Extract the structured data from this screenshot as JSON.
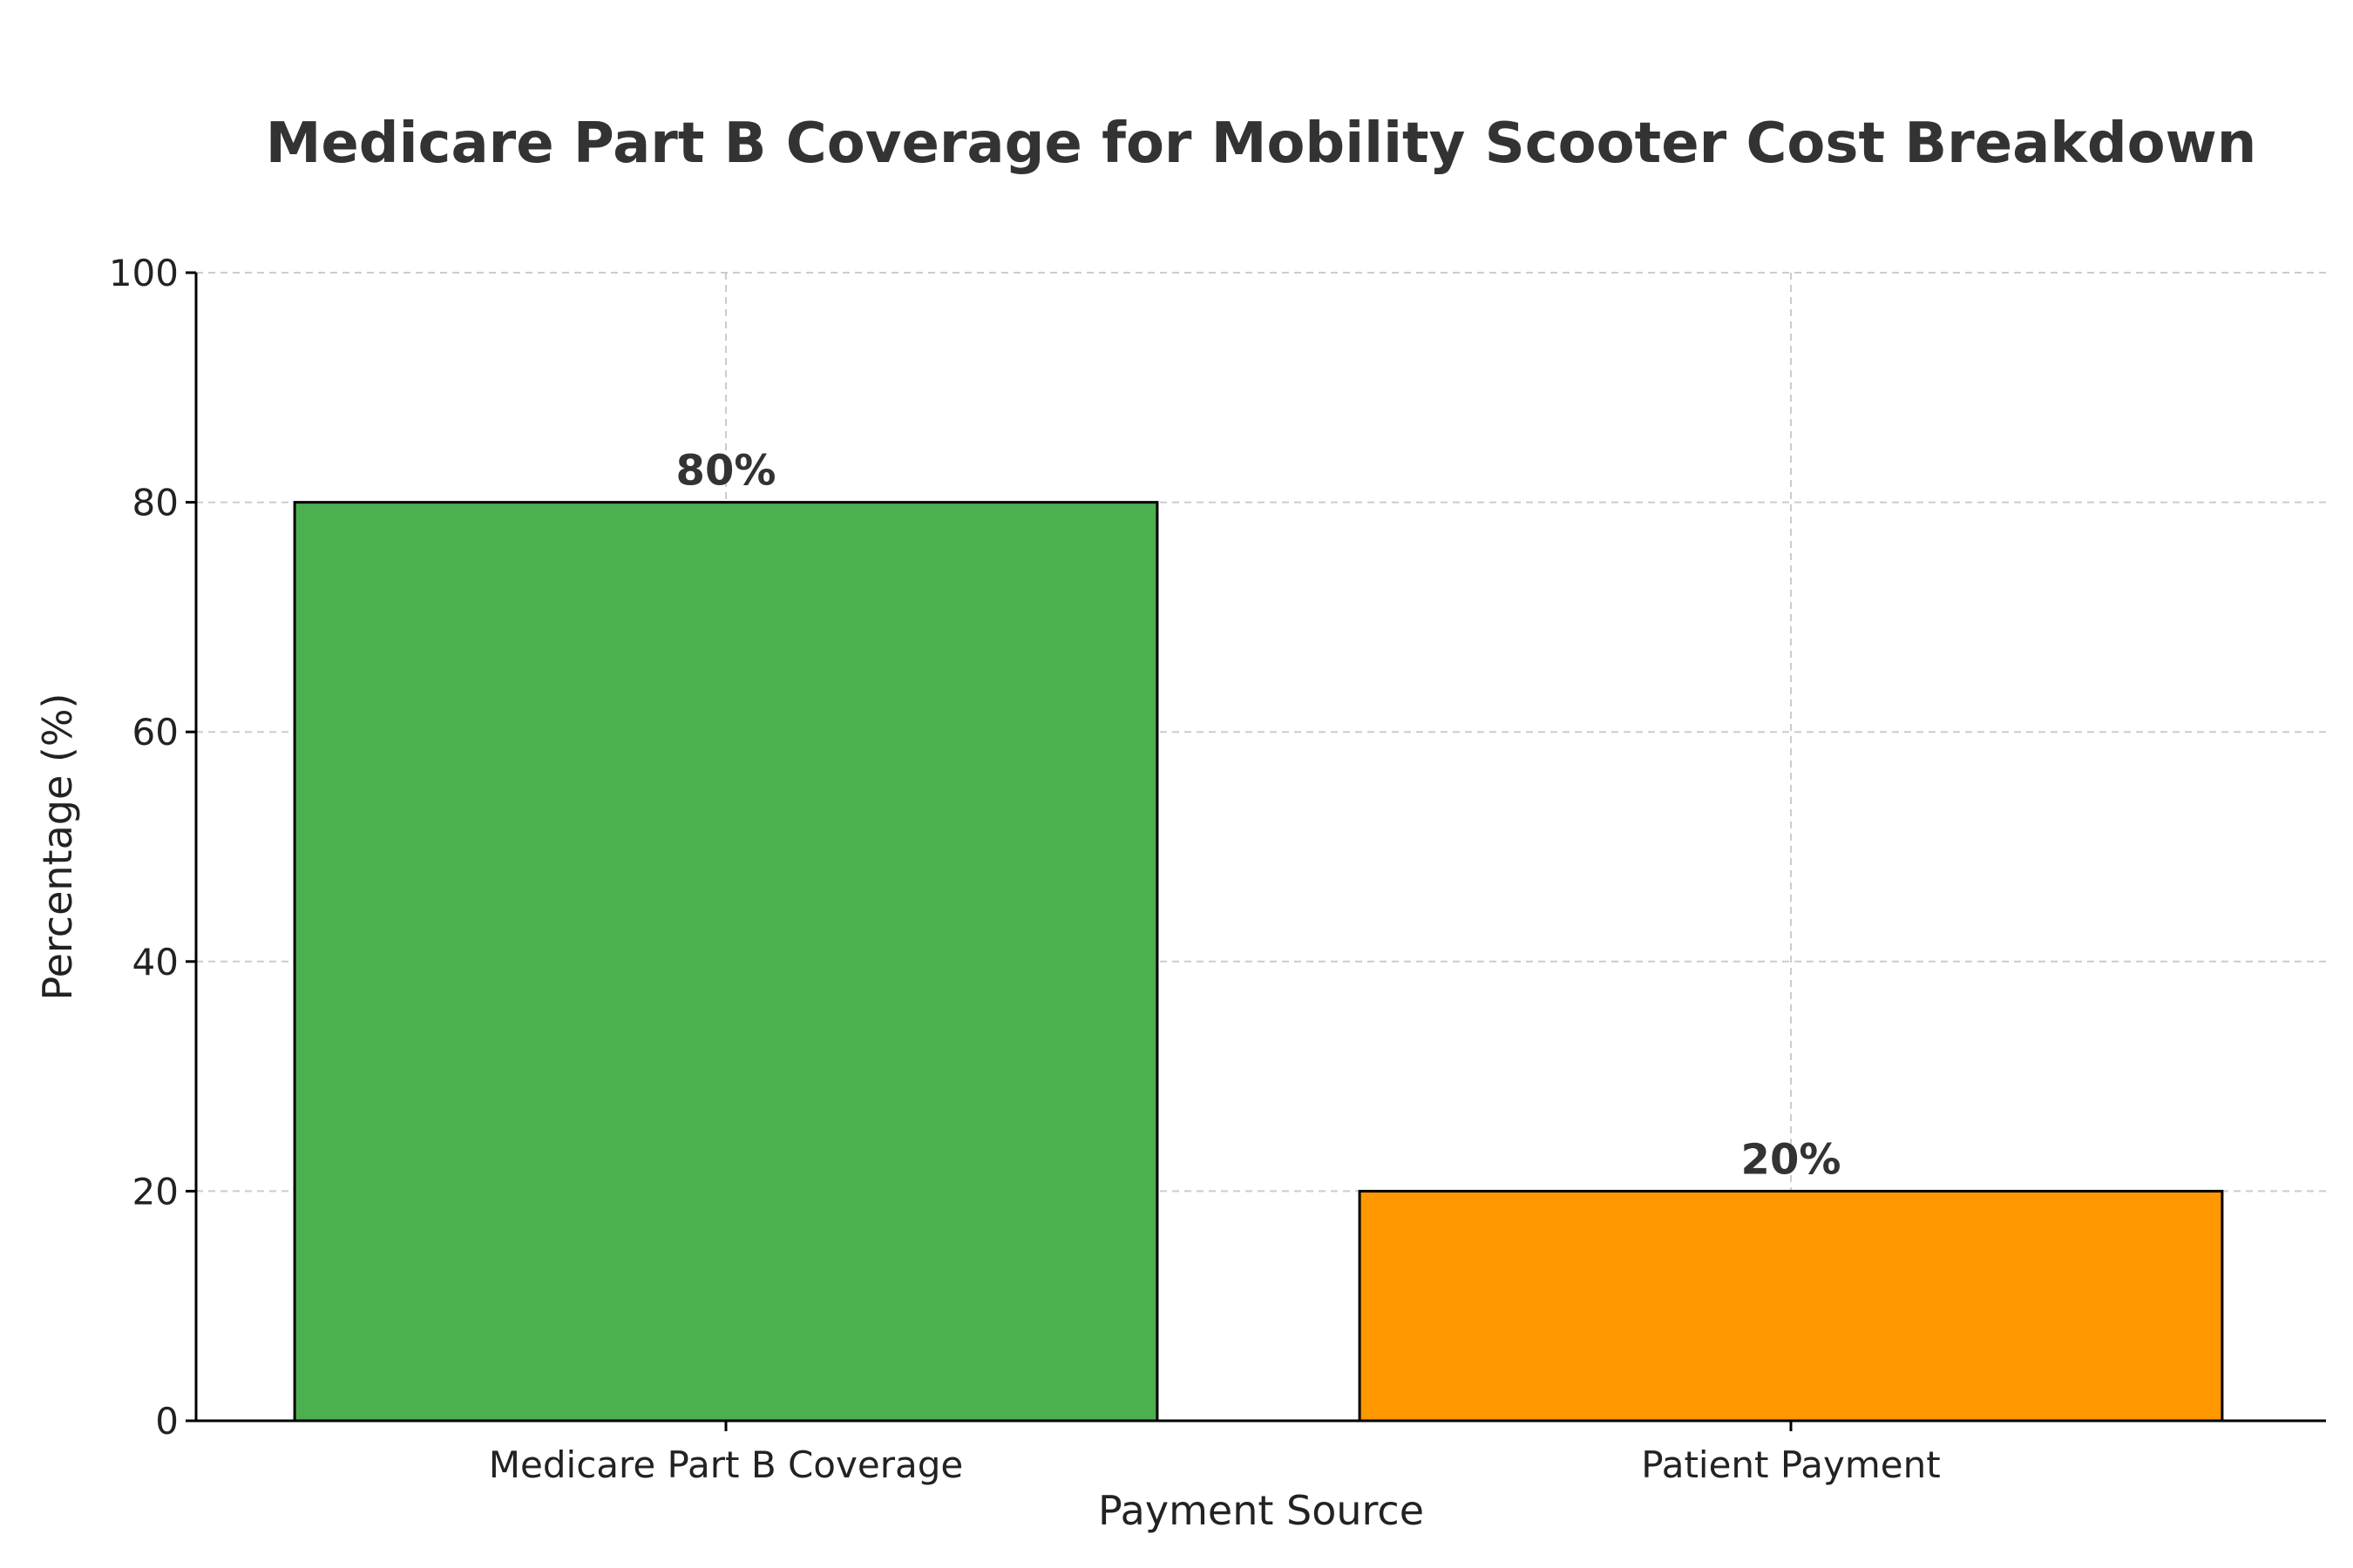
{
  "chart_data": {
    "type": "bar",
    "title": "Medicare Part B Coverage for Mobility Scooter Cost Breakdown",
    "xlabel": "Payment Source",
    "ylabel": "Percentage (%)",
    "categories": [
      "Medicare Part B Coverage",
      "Patient Payment"
    ],
    "values": [
      80,
      20
    ],
    "data_labels": [
      "80%",
      "20%"
    ],
    "colors": [
      "#4caf50",
      "#ff9800"
    ],
    "ylim": [
      0,
      100
    ],
    "yticks": [
      0,
      20,
      40,
      60,
      80,
      100
    ],
    "grid": true
  }
}
